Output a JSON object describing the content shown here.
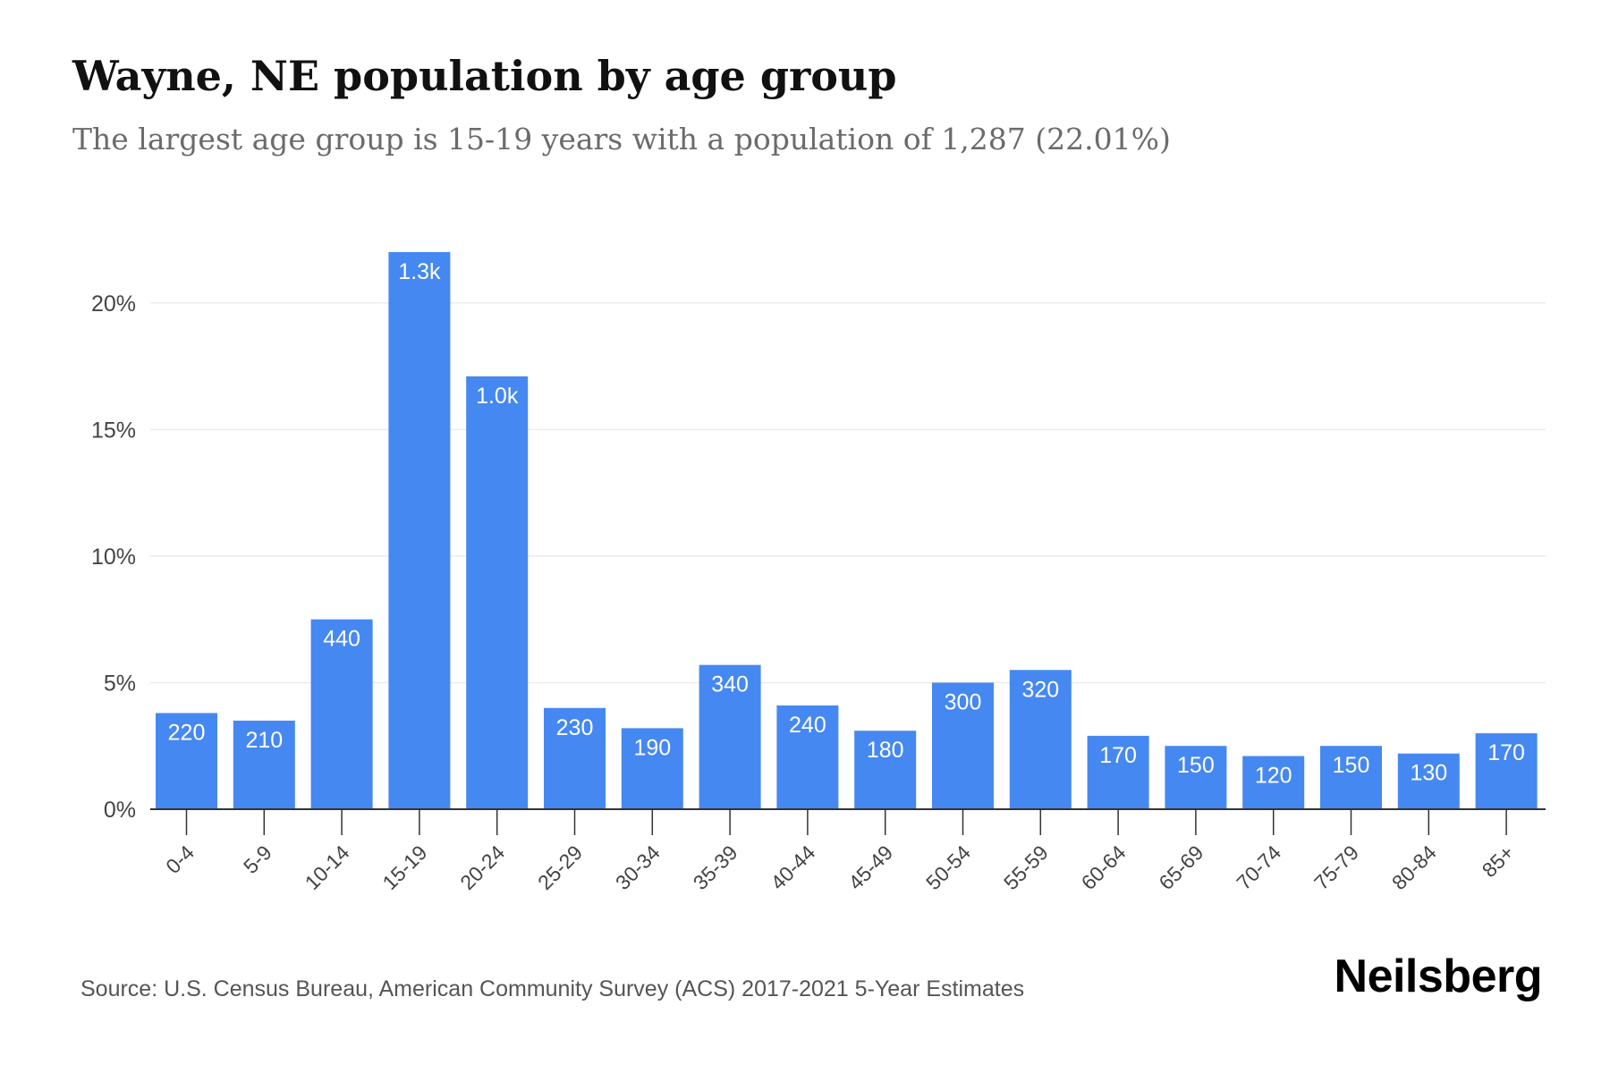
{
  "header": {
    "title": "Wayne, NE population by age group",
    "subtitle": "The largest age group is 15-19 years with a population of 1,287 (22.01%)"
  },
  "footer": {
    "source": "Source: U.S. Census Bureau, American Community Survey (ACS) 2017-2021 5-Year Estimates",
    "brand": "Neilsberg"
  },
  "colors": {
    "bar": "#4688f1",
    "bar_label": "#ffffff",
    "grid": "#ececec",
    "axis": "#333333",
    "tick_text": "#444444"
  },
  "chart_data": {
    "type": "bar",
    "title": "Wayne, NE population by age group",
    "subtitle": "The largest age group is 15-19 years with a population of 1,287 (22.01%)",
    "xlabel": "",
    "ylabel": "",
    "categories": [
      "0-4",
      "5-9",
      "10-14",
      "15-19",
      "20-24",
      "25-29",
      "30-34",
      "35-39",
      "40-44",
      "45-49",
      "50-54",
      "55-59",
      "60-64",
      "65-69",
      "70-74",
      "75-79",
      "80-84",
      "85+"
    ],
    "values": [
      3.8,
      3.5,
      7.5,
      22.01,
      17.1,
      4.0,
      3.2,
      5.7,
      4.1,
      3.1,
      5.0,
      5.5,
      2.9,
      2.5,
      2.1,
      2.5,
      2.2,
      3.0
    ],
    "value_unit": "%",
    "data_labels": [
      "220",
      "210",
      "440",
      "1.3k",
      "1.0k",
      "230",
      "190",
      "340",
      "240",
      "180",
      "300",
      "320",
      "170",
      "150",
      "120",
      "150",
      "130",
      "170"
    ],
    "yticks": [
      0,
      5,
      10,
      15,
      20
    ],
    "ytick_labels": [
      "0%",
      "5%",
      "10%",
      "15%",
      "20%"
    ],
    "ylim": [
      0,
      22.5
    ],
    "grid": true,
    "legend": "none"
  }
}
